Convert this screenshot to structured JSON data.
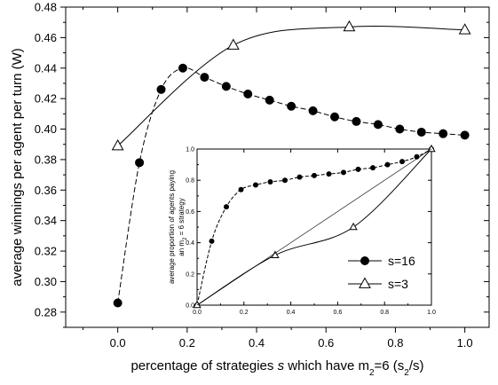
{
  "chart_data": [
    {
      "type": "scatter",
      "xlabel_parts": [
        "percentage of strategies ",
        "s",
        " which have m",
        "2",
        "=6  (s",
        "2",
        "/s)"
      ],
      "ylabel": "average winnings per agent per turn  (W)",
      "xlim": [
        -0.15,
        1.07
      ],
      "ylim": [
        0.27,
        0.48
      ],
      "xticks": [
        "0.0",
        "0.2",
        "0.4",
        "0.6",
        "0.8",
        "1.0"
      ],
      "yticks": [
        "0.28",
        "0.30",
        "0.32",
        "0.34",
        "0.36",
        "0.38",
        "0.40",
        "0.42",
        "0.44",
        "0.46",
        "0.48"
      ],
      "series": [
        {
          "name": "s=16",
          "marker": "filled-circle",
          "line": "dashed",
          "x": [
            0.0,
            0.0625,
            0.125,
            0.1875,
            0.25,
            0.3125,
            0.375,
            0.4375,
            0.5,
            0.5625,
            0.625,
            0.6875,
            0.75,
            0.8125,
            0.875,
            0.9375,
            1.0
          ],
          "y": [
            0.286,
            0.378,
            0.426,
            0.44,
            0.434,
            0.428,
            0.423,
            0.419,
            0.415,
            0.412,
            0.408,
            0.405,
            0.403,
            0.4,
            0.398,
            0.397,
            0.396
          ]
        },
        {
          "name": "s=3",
          "marker": "open-triangle",
          "line": "solid",
          "x": [
            0.0,
            0.333,
            0.667,
            1.0
          ],
          "y": [
            0.389,
            0.455,
            0.467,
            0.465
          ]
        }
      ]
    },
    {
      "type": "scatter",
      "role": "inset",
      "ylabel_lines": [
        "average proportion of agents paying",
        "an m",
        "2",
        " = 6 strategy"
      ],
      "xlim": [
        0.0,
        1.0
      ],
      "ylim": [
        0.0,
        1.0
      ],
      "xticks": [
        "0.0",
        "0.2",
        "0.4",
        "0.6",
        "0.8",
        "1.0"
      ],
      "yticks": [
        "0.0",
        "0.2",
        "0.4",
        "0.6",
        "0.8",
        "1.0"
      ],
      "legend": {
        "position": "bottom-right"
      },
      "series": [
        {
          "name": "s=16",
          "marker": "filled-circle",
          "line": "dashed",
          "x": [
            0.0,
            0.0625,
            0.125,
            0.1875,
            0.25,
            0.3125,
            0.375,
            0.4375,
            0.5,
            0.5625,
            0.625,
            0.6875,
            0.75,
            0.8125,
            0.875,
            0.9375,
            1.0
          ],
          "y": [
            0.0,
            0.41,
            0.63,
            0.74,
            0.77,
            0.79,
            0.8,
            0.82,
            0.83,
            0.84,
            0.85,
            0.87,
            0.88,
            0.9,
            0.92,
            0.95,
            1.0
          ]
        },
        {
          "name": "s=3",
          "marker": "open-triangle",
          "line": "solid",
          "x": [
            0.0,
            0.333,
            0.667,
            1.0
          ],
          "y": [
            0.0,
            0.32,
            0.5,
            1.0
          ]
        },
        {
          "name": "",
          "marker": "none",
          "line": "thin-solid",
          "x": [
            0.0,
            1.0
          ],
          "y": [
            0.0,
            1.0
          ]
        }
      ]
    }
  ]
}
